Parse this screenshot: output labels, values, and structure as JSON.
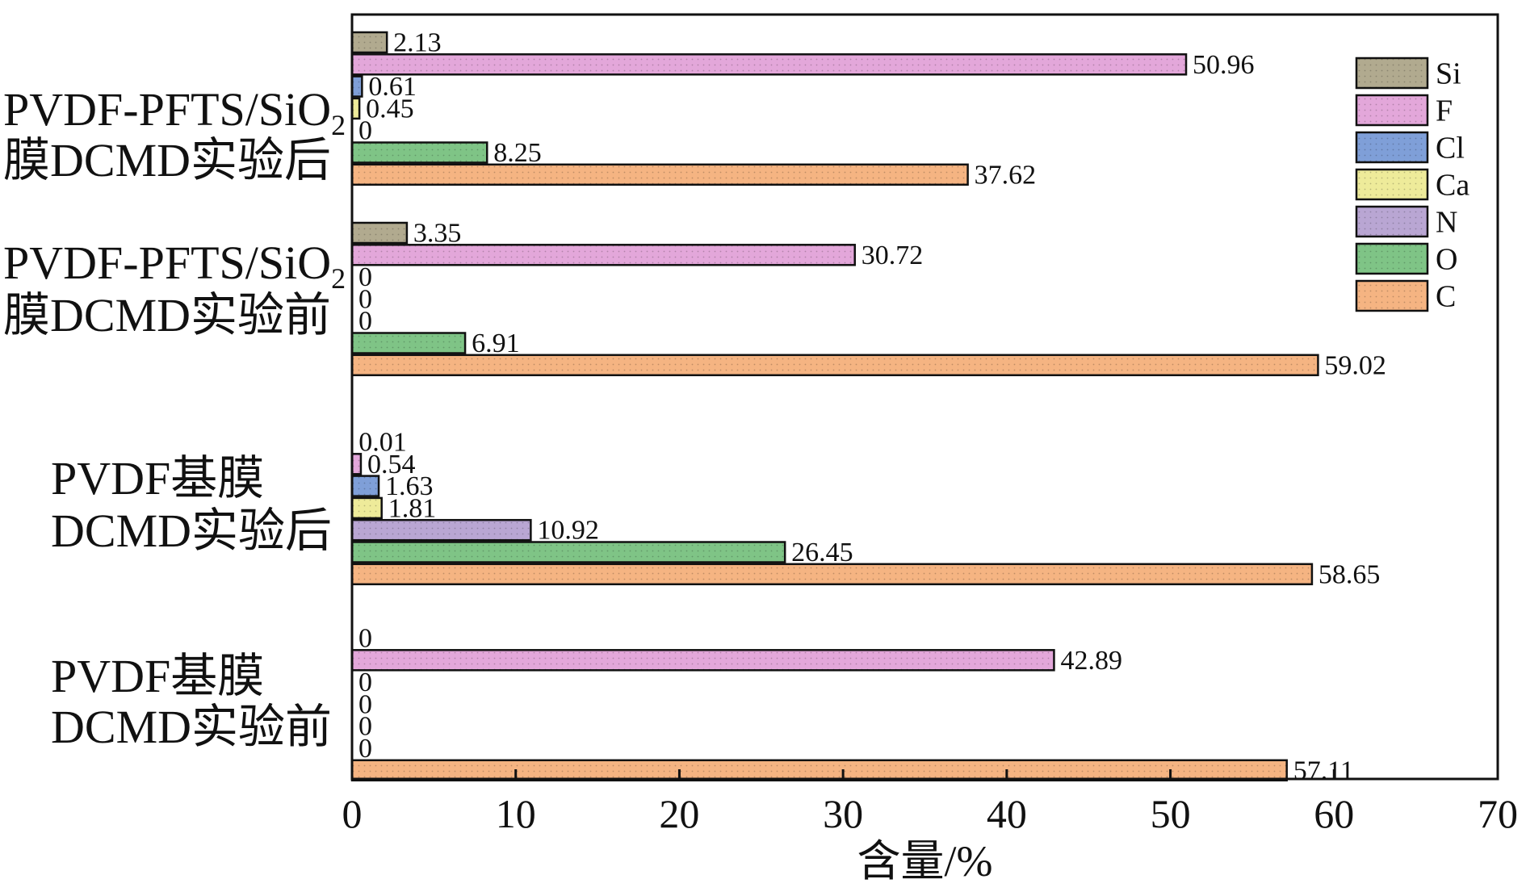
{
  "chart_data": {
    "type": "bar",
    "orientation": "horizontal",
    "xlabel": "含量/%",
    "xlim": [
      0,
      70
    ],
    "xticks": [
      0,
      10,
      20,
      30,
      40,
      50,
      60,
      70
    ],
    "legend_position": "top-right",
    "grid": false,
    "series": [
      {
        "name": "Si",
        "color": "#b1aa8f",
        "values": [
          2.13,
          3.35,
          0.01,
          0
        ]
      },
      {
        "name": "F",
        "color": "#e3a7da",
        "values": [
          50.96,
          30.72,
          0.54,
          42.89
        ]
      },
      {
        "name": "Cl",
        "color": "#7f9fd8",
        "values": [
          0.61,
          0,
          1.63,
          0
        ]
      },
      {
        "name": "Ca",
        "color": "#eeeb9a",
        "values": [
          0.45,
          0,
          1.81,
          0
        ]
      },
      {
        "name": "N",
        "color": "#b9a6d3",
        "values": [
          0,
          0,
          10.92,
          0
        ]
      },
      {
        "name": "O",
        "color": "#7fc486",
        "values": [
          8.25,
          6.91,
          26.45,
          0
        ]
      },
      {
        "name": "C",
        "color": "#f5b482",
        "values": [
          37.62,
          59.02,
          58.65,
          57.11
        ]
      }
    ],
    "value_labels": [
      [
        "2.13",
        "50.96",
        "0.61",
        "0.45",
        "0",
        "8.25",
        "37.62"
      ],
      [
        "3.35",
        "30.72",
        "0",
        "0",
        "0",
        "6.91",
        "59.02"
      ],
      [
        "0.01",
        "0.54",
        "1.63",
        "1.81",
        "10.92",
        "26.45",
        "58.65"
      ],
      [
        "0",
        "42.89",
        "0",
        "0",
        "0",
        "0",
        "57.11"
      ]
    ],
    "categories": [
      {
        "lines": [
          {
            "text": "PVDF-PFTS/SiO",
            "sub": "2"
          },
          {
            "text": "膜DCMD实验后",
            "sub": ""
          }
        ]
      },
      {
        "lines": [
          {
            "text": "PVDF-PFTS/SiO",
            "sub": "2"
          },
          {
            "text": "膜DCMD实验前",
            "sub": ""
          }
        ]
      },
      {
        "lines": [
          {
            "text": "PVDF基膜",
            "sub": ""
          },
          {
            "text": "DCMD实验后",
            "sub": ""
          }
        ]
      },
      {
        "lines": [
          {
            "text": "PVDF基膜",
            "sub": ""
          },
          {
            "text": "DCMD实验前",
            "sub": ""
          }
        ]
      }
    ]
  }
}
